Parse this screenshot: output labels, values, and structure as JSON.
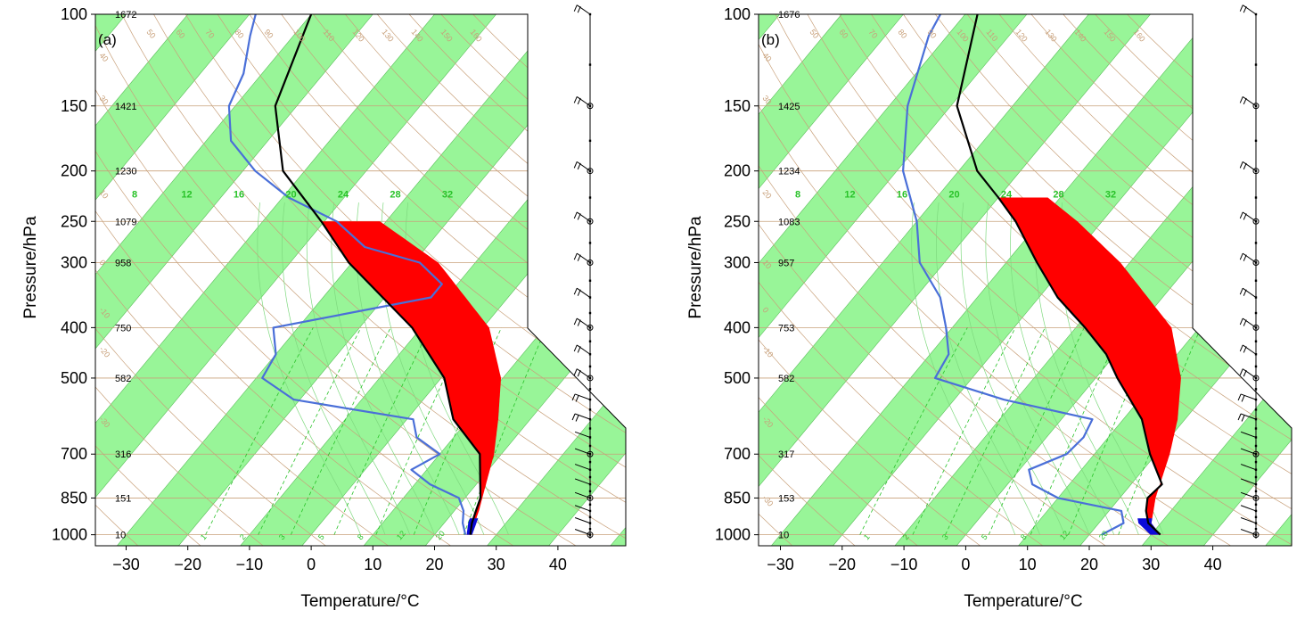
{
  "colors": {
    "band_fill": "#98f598",
    "band_edge": "#5cbf5c",
    "isotherm_tan": "#c8a07a",
    "mixing_ratio_green": "#29c229",
    "dew_point": "#4a6fd8",
    "temperature": "#000000",
    "cape_fill": "#ff0000",
    "cin_fill": "#0b0bd8",
    "adiabat_green": "#7fd97f"
  },
  "axes_text": {
    "xlabel": "Temperature/°C",
    "ylabel": "Pressure/hPa",
    "x_ticks": [
      "−30",
      "−20",
      "−10",
      "0",
      "10",
      "20",
      "30",
      "40"
    ],
    "y_ticks": [
      "100",
      "150",
      "200",
      "250",
      "300",
      "400",
      "500",
      "700",
      "850",
      "1000"
    ]
  },
  "chart_data": [
    {
      "type": "line",
      "panel": "(a)",
      "xlabel": "Temperature/°C",
      "ylabel": "Pressure/hPa",
      "y_scale": "log",
      "xlim": [
        -34,
        51
      ],
      "ylim": [
        1050,
        100
      ],
      "pressure_ticks": [
        100,
        150,
        200,
        250,
        300,
        400,
        500,
        700,
        850,
        1000
      ],
      "height_labels": [
        "1672",
        "1421",
        "1230",
        "1079",
        "958",
        "750",
        "582",
        "316",
        "151",
        "10"
      ],
      "mixing_ratio_labels": [
        "8",
        "12",
        "16",
        "20",
        "24",
        "28",
        "32"
      ],
      "dry_adiabat_labels": [
        "1",
        "2",
        "3",
        "5",
        "8",
        "12",
        "20"
      ],
      "isotherm_labels": [
        "50",
        "60",
        "70",
        "80",
        "90",
        "100",
        "110",
        "120",
        "130",
        "140",
        "150",
        "160"
      ],
      "left_isotherm_labels": [
        "40",
        "30",
        "10",
        "0",
        "-10",
        "-20",
        "-30"
      ],
      "series": [
        {
          "role": "temperature",
          "pressure": [
            1000,
            950,
            900,
            850,
            700,
            600,
            500,
            400,
            300,
            250,
            200,
            150,
            100
          ],
          "values": [
            25.8,
            24.5,
            23.5,
            22.5,
            16.5,
            7.5,
            0.5,
            -11.5,
            -30.5,
            -40.5,
            -53.5,
            -63.5,
            -70.0
          ]
        },
        {
          "role": "dew_point",
          "pressure": [
            1000,
            950,
            900,
            850,
            800,
            750,
            700,
            650,
            600,
            550,
            500,
            450,
            400,
            350,
            330,
            300,
            280,
            250,
            225,
            200,
            175,
            150,
            130,
            110,
            100
          ],
          "values": [
            25.0,
            23.0,
            21.5,
            19.0,
            12.5,
            7.5,
            10.0,
            4.0,
            1.0,
            -21.0,
            -29.0,
            -30.0,
            -34.0,
            -12.5,
            -12.5,
            -19.0,
            -30.0,
            -38.0,
            -49.0,
            -58.0,
            -66.0,
            -71.0,
            -73.0,
            -77.0,
            -79.0
          ]
        },
        {
          "role": "parcel",
          "pressure": [
            1000,
            900,
            850,
            700,
            600,
            500,
            400,
            300,
            250
          ],
          "values": [
            25.8,
            24.0,
            22.8,
            18.8,
            14.8,
            9.7,
            1.0,
            -16.0,
            -31.0
          ]
        }
      ]
    },
    {
      "type": "line",
      "panel": "(b)",
      "xlabel": "Temperature/°C",
      "ylabel": "Pressure/hPa",
      "y_scale": "log",
      "xlim": [
        -34,
        51
      ],
      "ylim": [
        1050,
        100
      ],
      "pressure_ticks": [
        100,
        150,
        200,
        250,
        300,
        400,
        500,
        700,
        850,
        1000
      ],
      "height_labels": [
        "1676",
        "1425",
        "1234",
        "1083",
        "957",
        "753",
        "582",
        "317",
        "153",
        "10"
      ],
      "mixing_ratio_labels": [
        "8",
        "12",
        "16",
        "20",
        "24",
        "28",
        "32"
      ],
      "dry_adiabat_labels": [
        "1",
        "2",
        "3",
        "5",
        "8",
        "12",
        "20"
      ],
      "isotherm_labels": [
        "50",
        "60",
        "70",
        "80",
        "90",
        "100",
        "110",
        "120",
        "130",
        "140",
        "150",
        "160"
      ],
      "left_isotherm_labels": [
        "40",
        "30",
        "20",
        "10",
        "0",
        "-10",
        "-20",
        "-30"
      ],
      "series": [
        {
          "role": "temperature",
          "pressure": [
            1000,
            950,
            900,
            850,
            800,
            700,
            600,
            500,
            450,
            400,
            350,
            300,
            250,
            225,
            200,
            150,
            100
          ],
          "values": [
            31.5,
            28.0,
            26.0,
            24.5,
            25.0,
            19.0,
            13.0,
            3.5,
            -1.5,
            -8.5,
            -17.0,
            -25.0,
            -34.0,
            -40.0,
            -47.0,
            -59.0,
            -68.0
          ]
        },
        {
          "role": "dew_point",
          "pressure": [
            1000,
            950,
            900,
            850,
            800,
            750,
            700,
            650,
            600,
            550,
            500,
            450,
            400,
            350,
            300,
            250,
            200,
            150,
            110,
            100
          ],
          "values": [
            22.0,
            24.0,
            22.0,
            10.0,
            4.0,
            1.5,
            5.5,
            6.0,
            5.0,
            -12.0,
            -26.0,
            -27.0,
            -31.0,
            -36.0,
            -44.0,
            -50.0,
            -59.0,
            -67.0,
            -73.0,
            -74.0
          ]
        },
        {
          "role": "parcel",
          "pressure": [
            1000,
            950,
            900,
            850,
            700,
            600,
            500,
            400,
            300,
            250,
            225
          ],
          "values": [
            31.5,
            28.5,
            27.2,
            25.8,
            22.2,
            18.8,
            13.8,
            5.5,
            -11.5,
            -24.0,
            -32.0
          ]
        }
      ]
    }
  ]
}
